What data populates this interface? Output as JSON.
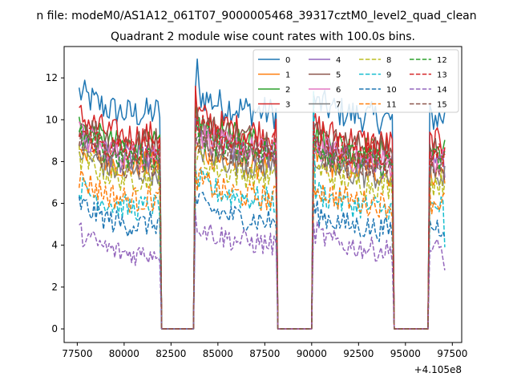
{
  "page": {
    "suptitle": "n file: modeM0/AS1A12_061T07_9000005468_39317cztM0_level2_quad_clean",
    "title": "Quadrant 2 module wise count rates with 100.0s bins.",
    "offset_label": "+4.105e8"
  },
  "chart_data": {
    "type": "line",
    "title": "Quadrant 2 module wise count rates with 100.0s bins.",
    "xlabel": "",
    "ylabel": "",
    "x_offset": 410500000,
    "xlim": [
      76800,
      98000
    ],
    "ylim": [
      -0.65,
      13.5
    ],
    "xticks": [
      77500,
      80000,
      82500,
      85000,
      87500,
      90000,
      92500,
      95000,
      97500
    ],
    "xtick_labels": [
      "77500",
      "80000",
      "82500",
      "85000",
      "87500",
      "90000",
      "92500",
      "95000",
      "97500"
    ],
    "yticks": [
      0,
      2,
      4,
      6,
      8,
      10,
      12
    ],
    "ytick_labels": [
      "0",
      "2",
      "4",
      "6",
      "8",
      "10",
      "12"
    ],
    "grid": false,
    "legend_position": "top-right",
    "legend_columns": 4,
    "bin_seconds": 100,
    "segments": [
      {
        "start": 77600,
        "end": 81900
      },
      {
        "start": 83800,
        "end": 88100
      },
      {
        "start": 90100,
        "end": 94300
      },
      {
        "start": 96300,
        "end": 97100
      }
    ],
    "gaps": [
      {
        "start": 82000,
        "end": 83700
      },
      {
        "start": 88200,
        "end": 90000
      },
      {
        "start": 94400,
        "end": 96200
      }
    ],
    "series": [
      {
        "name": "0",
        "color": "#1f77b4",
        "dash": "solid",
        "levels": [
          10.4,
          10.6,
          10.3,
          10.1
        ]
      },
      {
        "name": "1",
        "color": "#ff7f0e",
        "dash": "solid",
        "levels": [
          7.9,
          8.0,
          7.7,
          7.5
        ]
      },
      {
        "name": "2",
        "color": "#2ca02c",
        "dash": "solid",
        "levels": [
          8.8,
          9.2,
          8.7,
          8.5
        ]
      },
      {
        "name": "3",
        "color": "#d62728",
        "dash": "solid",
        "levels": [
          9.3,
          9.6,
          9.1,
          8.9
        ]
      },
      {
        "name": "4",
        "color": "#9467bd",
        "dash": "solid",
        "levels": [
          8.2,
          8.6,
          8.1,
          7.9
        ]
      },
      {
        "name": "5",
        "color": "#8c564b",
        "dash": "solid",
        "levels": [
          9.0,
          9.3,
          8.8,
          8.6
        ]
      },
      {
        "name": "6",
        "color": "#e377c2",
        "dash": "solid",
        "levels": [
          8.4,
          8.7,
          8.2,
          8.0
        ]
      },
      {
        "name": "7",
        "color": "#7f7f7f",
        "dash": "solid",
        "levels": [
          7.6,
          8.0,
          7.5,
          7.3
        ]
      },
      {
        "name": "8",
        "color": "#bcbd22",
        "dash": "dashed",
        "levels": [
          7.3,
          7.5,
          7.1,
          7.0
        ]
      },
      {
        "name": "9",
        "color": "#17becf",
        "dash": "dashed",
        "levels": [
          5.9,
          6.4,
          6.0,
          5.8
        ]
      },
      {
        "name": "10",
        "color": "#1f77b4",
        "dash": "dashed",
        "levels": [
          5.1,
          5.4,
          5.0,
          4.9
        ]
      },
      {
        "name": "11",
        "color": "#ff7f0e",
        "dash": "dashed",
        "levels": [
          6.3,
          6.5,
          6.2,
          6.1
        ]
      },
      {
        "name": "12",
        "color": "#2ca02c",
        "dash": "dashed",
        "levels": [
          8.3,
          8.7,
          8.2,
          8.0
        ]
      },
      {
        "name": "13",
        "color": "#d62728",
        "dash": "dashed",
        "levels": [
          8.6,
          9.0,
          8.5,
          8.3
        ]
      },
      {
        "name": "14",
        "color": "#9467bd",
        "dash": "dashed",
        "levels": [
          3.7,
          4.3,
          4.0,
          3.8
        ]
      },
      {
        "name": "15",
        "color": "#8c564b",
        "dash": "dashed",
        "levels": [
          8.0,
          8.4,
          7.9,
          7.7
        ]
      }
    ],
    "highlights": [
      {
        "series": "0",
        "x": 83900,
        "y": 12.9
      },
      {
        "series": "3",
        "x": 83850,
        "y": 11.6
      },
      {
        "series": "9",
        "x": 90100,
        "y": 11.4
      },
      {
        "series": "0",
        "x": 90300,
        "y": 11.1
      },
      {
        "series": "14",
        "x": 97100,
        "y": 2.8
      },
      {
        "series": "9",
        "x": 97100,
        "y": 3.9
      }
    ]
  }
}
